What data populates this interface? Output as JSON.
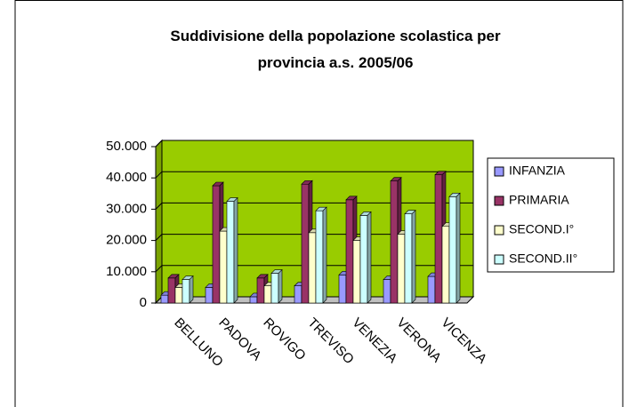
{
  "chart_data": {
    "type": "bar3d",
    "title": "Suddivisione della popolazione scolastica  per provincia a.s. 2005/06",
    "categories": [
      "BELLUNO",
      "PADOVA",
      "ROVIGO",
      "TREVISO",
      "VENEZIA",
      "VERONA",
      "VICENZA"
    ],
    "series": [
      {
        "name": "INFANZIA",
        "color": "#9999ff",
        "values": [
          2500,
          5000,
          2000,
          5500,
          9000,
          7500,
          8500
        ]
      },
      {
        "name": "PRIMARIA",
        "color": "#993366",
        "values": [
          8000,
          37500,
          8000,
          38000,
          33000,
          39000,
          41000
        ]
      },
      {
        "name": "SECOND.I°",
        "color": "#ffffcc",
        "values": [
          5000,
          23000,
          5500,
          22500,
          20000,
          22000,
          24500
        ]
      },
      {
        "name": "SECOND.II°",
        "color": "#ccffff",
        "values": [
          7500,
          32500,
          9500,
          29500,
          28000,
          28500,
          34000
        ]
      }
    ],
    "ylim": [
      0,
      50000
    ],
    "yticks": [
      0,
      {
        "value": 10000,
        "label": "10.000"
      },
      {
        "value": 20000,
        "label": "20.000"
      },
      {
        "value": 30000,
        "label": "30.000"
      },
      {
        "value": 40000,
        "label": "40.000"
      },
      {
        "value": 50000,
        "label": "50.000"
      }
    ],
    "grid": true,
    "plot_background": "#99cc00",
    "legend": "right"
  }
}
